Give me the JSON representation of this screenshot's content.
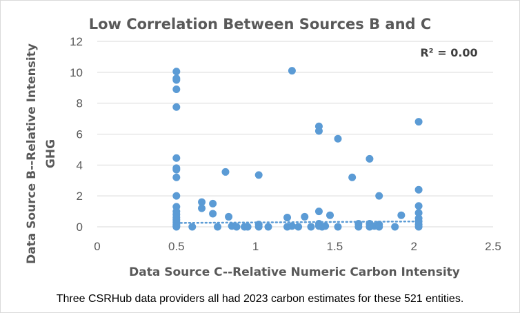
{
  "chart_data": {
    "type": "scatter",
    "title": "Low Correlation Between Sources B and C",
    "xlabel": "Data Source C--Relative Numeric Carbon Intensity",
    "ylabel_lines": [
      "Data Source B--Relative Intensity",
      "GHG"
    ],
    "xlim": [
      0,
      2.5
    ],
    "ylim": [
      0,
      12
    ],
    "x_ticks": [
      "0",
      "0.5",
      "1",
      "1.5",
      "2",
      "2.5"
    ],
    "y_ticks": [
      "0",
      "2",
      "4",
      "6",
      "8",
      "10",
      "12"
    ],
    "grid": "horizontal",
    "annotation": "R² = 0.00",
    "caption": "Three CSRHub data providers all had 2023 carbon estimates for these 521 entities.",
    "trendline": {
      "x": [
        0.5,
        2.03
      ],
      "y": [
        0.25,
        0.35
      ]
    },
    "points": [
      [
        0.5,
        10.05
      ],
      [
        0.5,
        9.6
      ],
      [
        0.5,
        9.5
      ],
      [
        0.5,
        8.9
      ],
      [
        0.5,
        7.75
      ],
      [
        0.5,
        4.45
      ],
      [
        0.5,
        3.8
      ],
      [
        0.5,
        3.7
      ],
      [
        0.5,
        3.2
      ],
      [
        0.5,
        2.0
      ],
      [
        0.5,
        1.3
      ],
      [
        0.5,
        1.0
      ],
      [
        0.5,
        0.8
      ],
      [
        0.5,
        0.6
      ],
      [
        0.5,
        0.45
      ],
      [
        0.5,
        0.3
      ],
      [
        0.5,
        0.15
      ],
      [
        0.5,
        0.05
      ],
      [
        0.5,
        0.0
      ],
      [
        0.6,
        0.0
      ],
      [
        0.66,
        1.6
      ],
      [
        0.66,
        1.2
      ],
      [
        0.73,
        1.5
      ],
      [
        0.73,
        0.85
      ],
      [
        0.76,
        0.0
      ],
      [
        0.81,
        3.55
      ],
      [
        0.83,
        0.65
      ],
      [
        0.85,
        0.05
      ],
      [
        0.88,
        0.0
      ],
      [
        0.93,
        0.0
      ],
      [
        0.95,
        0.0
      ],
      [
        1.02,
        3.35
      ],
      [
        1.02,
        0.15
      ],
      [
        1.02,
        0.0
      ],
      [
        1.08,
        0.0
      ],
      [
        1.2,
        0.6
      ],
      [
        1.2,
        0.0
      ],
      [
        1.23,
        10.1
      ],
      [
        1.23,
        0.05
      ],
      [
        1.27,
        0.0
      ],
      [
        1.31,
        0.65
      ],
      [
        1.35,
        0.0
      ],
      [
        1.4,
        6.5
      ],
      [
        1.4,
        6.2
      ],
      [
        1.4,
        1.0
      ],
      [
        1.4,
        0.2
      ],
      [
        1.4,
        0.05
      ],
      [
        1.42,
        0.0
      ],
      [
        1.44,
        0.05
      ],
      [
        1.47,
        0.75
      ],
      [
        1.52,
        5.7
      ],
      [
        1.52,
        0.0
      ],
      [
        1.61,
        3.2
      ],
      [
        1.65,
        0.2
      ],
      [
        1.65,
        0.0
      ],
      [
        1.72,
        4.4
      ],
      [
        1.72,
        0.2
      ],
      [
        1.72,
        0.0
      ],
      [
        1.75,
        0.05
      ],
      [
        1.78,
        2.0
      ],
      [
        1.78,
        0.15
      ],
      [
        1.78,
        0.0
      ],
      [
        1.88,
        0.0
      ],
      [
        1.92,
        0.75
      ],
      [
        2.03,
        6.8
      ],
      [
        2.03,
        2.4
      ],
      [
        2.03,
        1.35
      ],
      [
        2.03,
        0.9
      ],
      [
        2.03,
        0.55
      ],
      [
        2.03,
        0.35
      ],
      [
        2.03,
        0.15
      ],
      [
        2.03,
        0.0
      ]
    ]
  }
}
